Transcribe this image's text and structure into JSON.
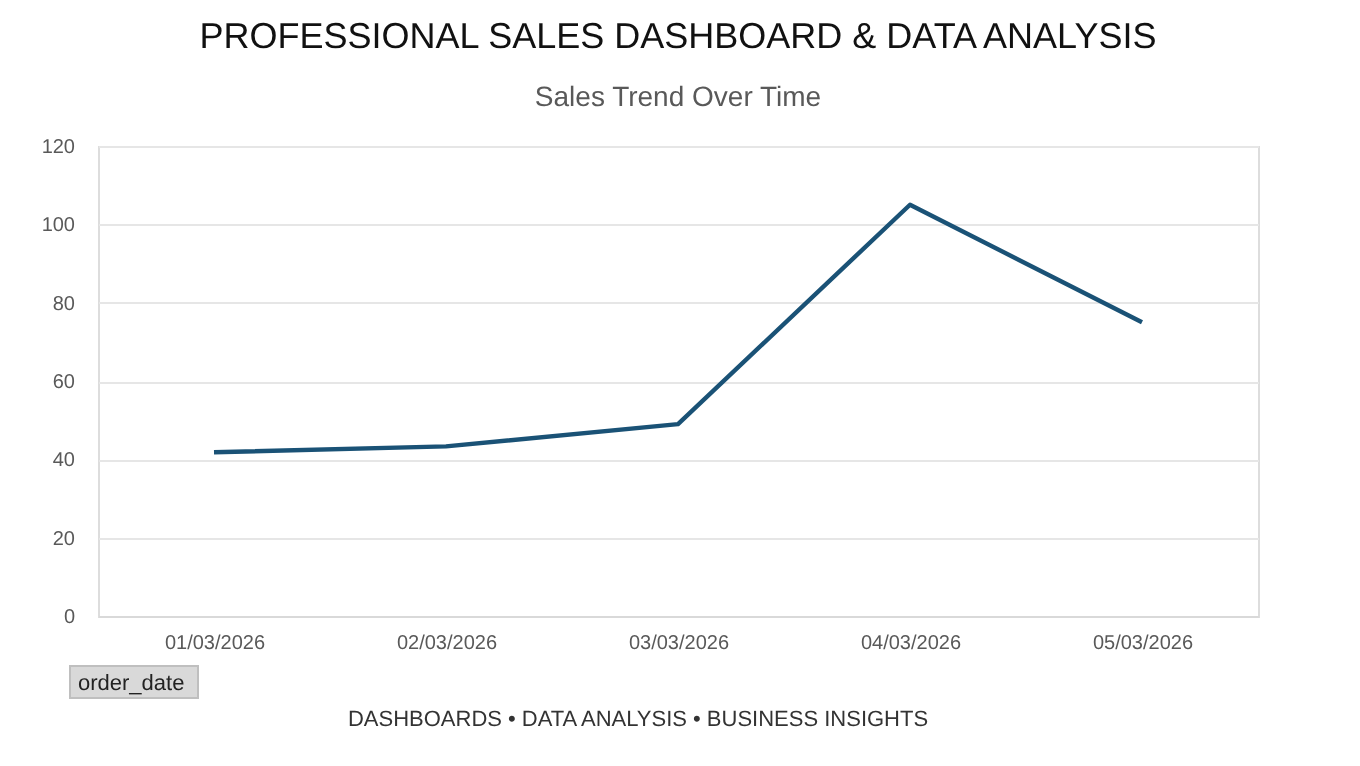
{
  "chart_data": {
    "type": "line",
    "title": "PROFESSIONAL SALES DASHBOARD & DATA ANALYSIS",
    "subtitle": "Sales Trend Over Time",
    "categories": [
      "01/03/2026",
      "02/03/2026",
      "03/03/2026",
      "04/03/2026",
      "05/03/2026"
    ],
    "series": [
      {
        "color": "#1a5276",
        "values": [
          41.8,
          43.3,
          49,
          105,
          75
        ]
      }
    ],
    "ylim": [
      0,
      120
    ],
    "yticks": [
      0,
      20,
      40,
      60,
      80,
      100,
      120
    ],
    "grid": "y",
    "legend": false,
    "marker": "none",
    "line_style": "solid",
    "annotations": [
      "order_date",
      "DASHBOARDS • DATA ANALYSIS • BUSINESS INSIGHTS"
    ]
  }
}
